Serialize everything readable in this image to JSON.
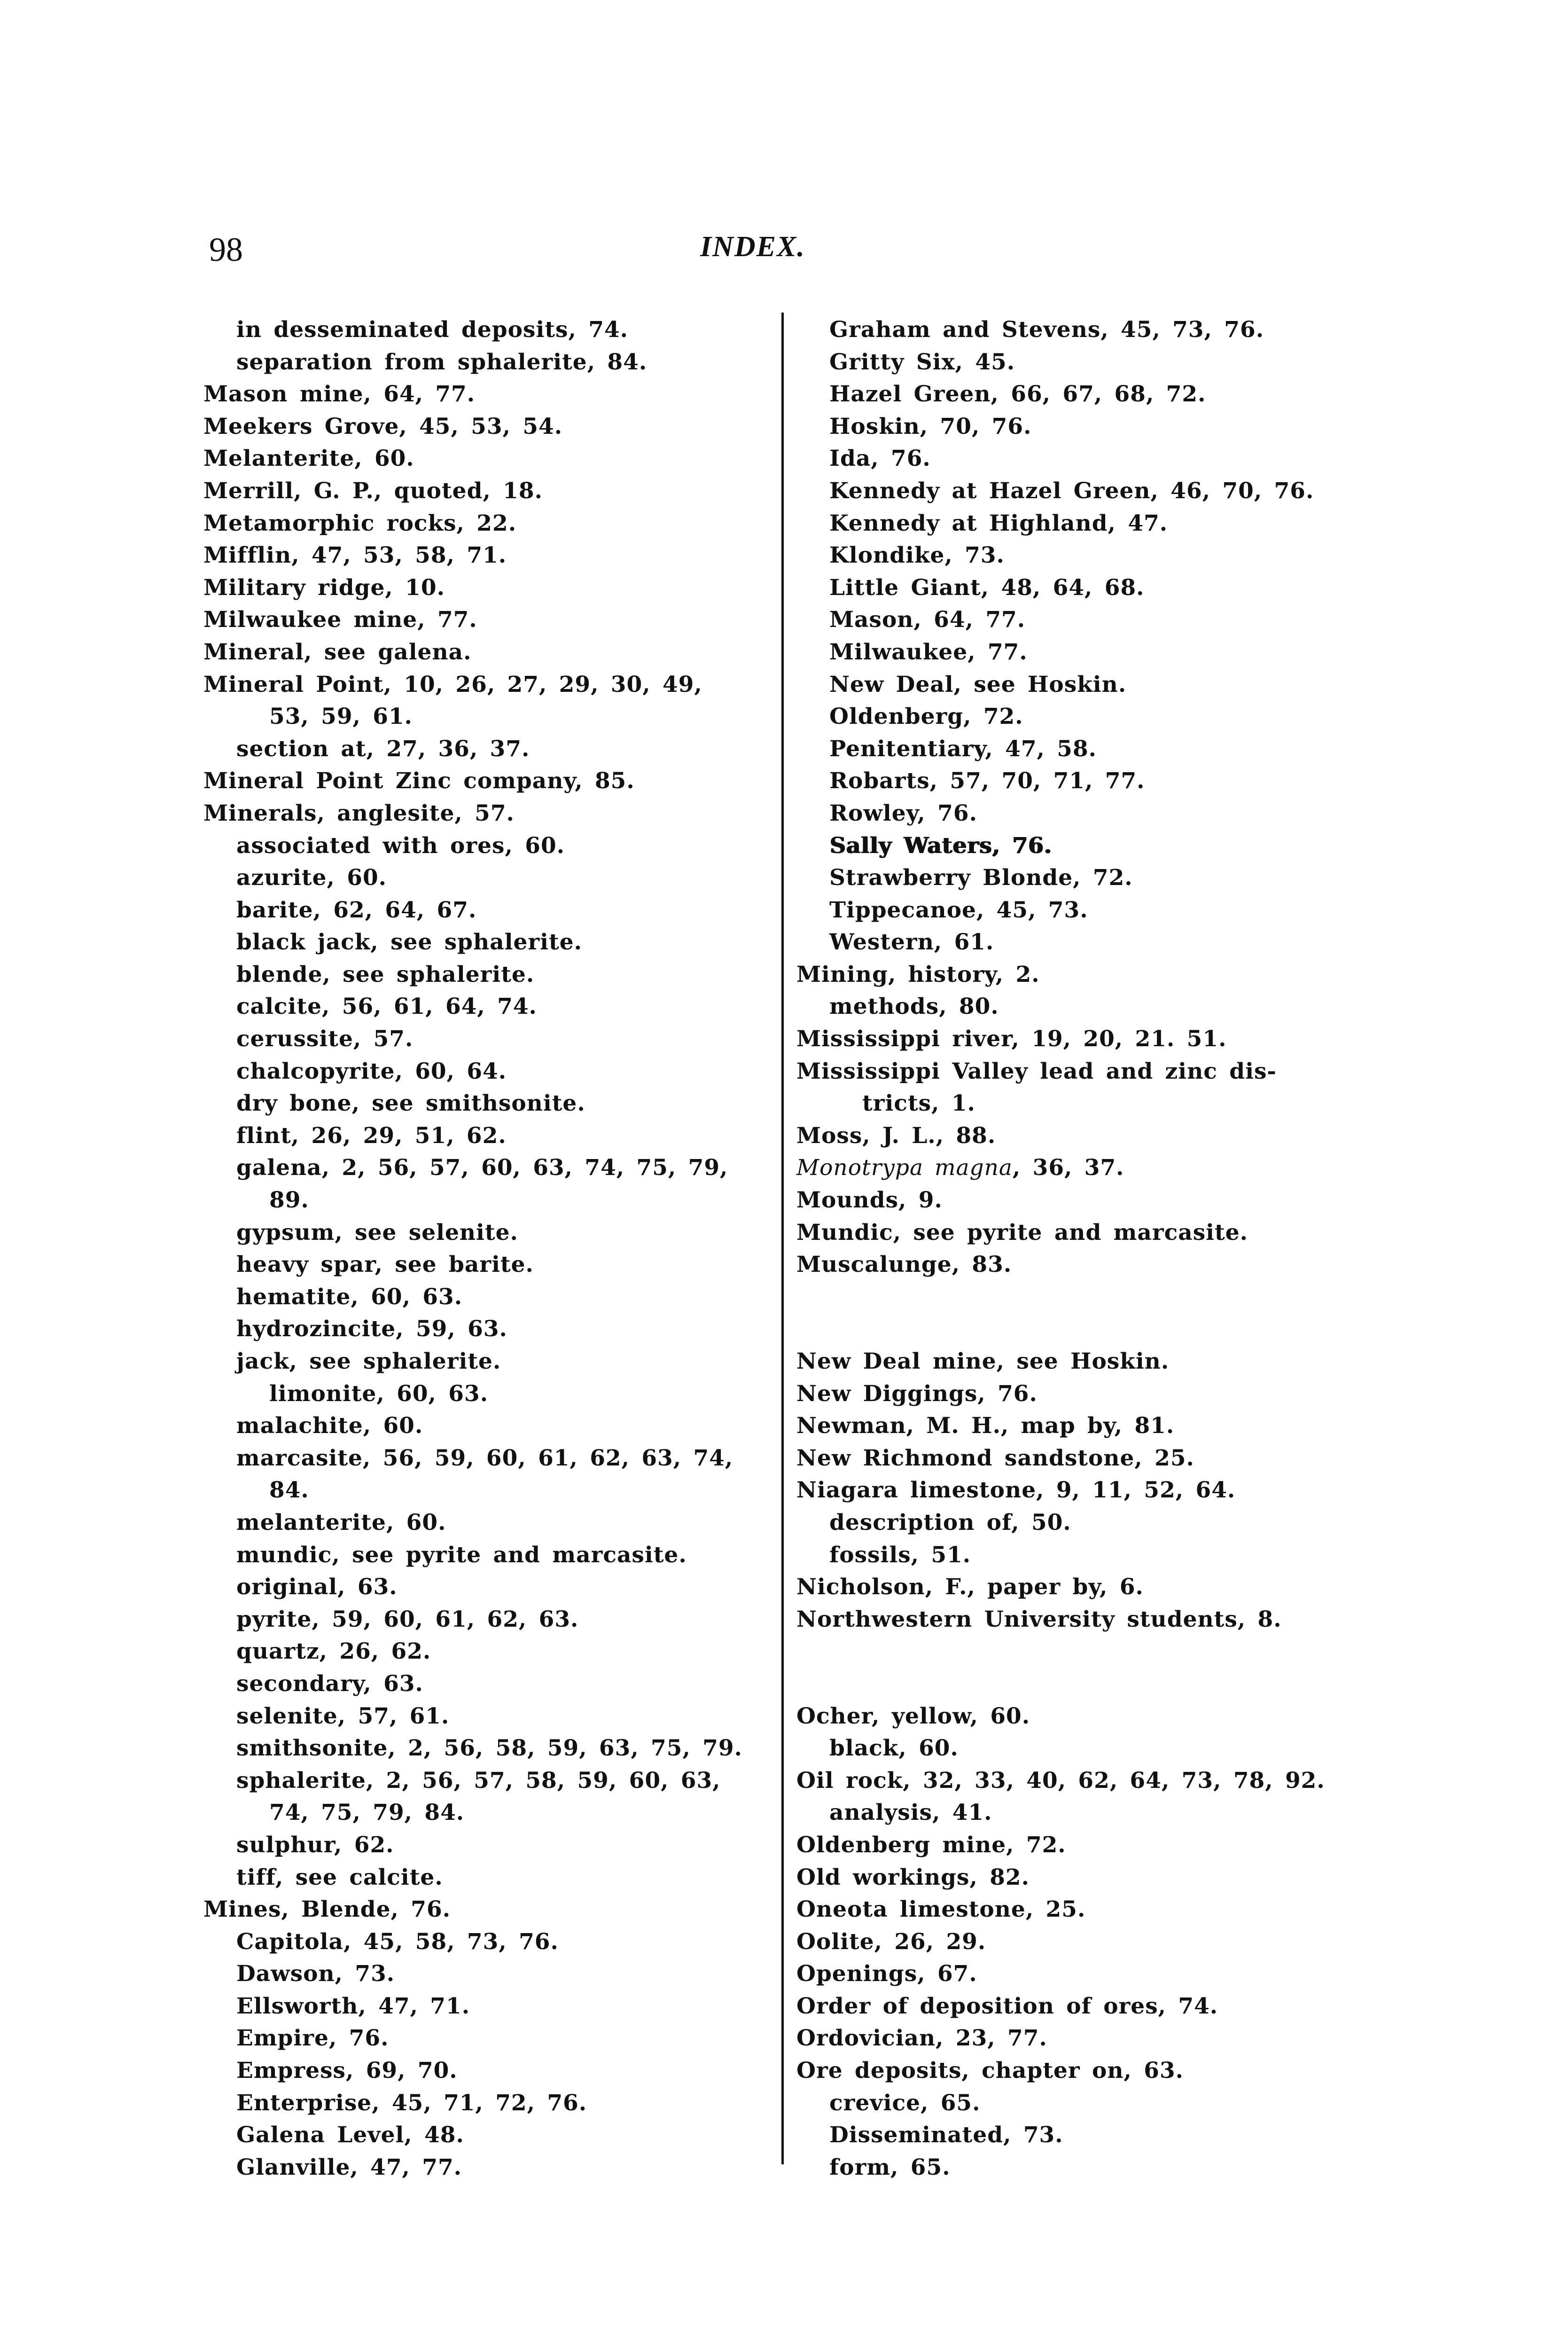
{
  "header": {
    "page_number": "98",
    "title": "INDEX."
  },
  "left_column": [
    {
      "level": 1,
      "text": "in desseminated deposits, 74."
    },
    {
      "level": 1,
      "text": "separation from sphalerite, 84."
    },
    {
      "level": 0,
      "text": "Mason mine, 64, 77."
    },
    {
      "level": 0,
      "text": "Meekers Grove, 45, 53, 54."
    },
    {
      "level": 0,
      "text": "Melanterite, 60."
    },
    {
      "level": 0,
      "text": "Merrill, G. P., quoted, 18."
    },
    {
      "level": 0,
      "text": "Metamorphic rocks, 22."
    },
    {
      "level": 0,
      "text": "Mifflin, 47, 53, 58, 71."
    },
    {
      "level": 0,
      "text": "Military ridge, 10."
    },
    {
      "level": 0,
      "text": "Milwaukee mine, 77."
    },
    {
      "level": 0,
      "text": "Mineral, see galena."
    },
    {
      "level": 0,
      "text": "Mineral Point, 10, 26, 27, 29, 30, 49,"
    },
    {
      "level": 2,
      "text": "53, 59, 61."
    },
    {
      "level": 1,
      "text": "section at, 27, 36, 37."
    },
    {
      "level": 0,
      "text": "Mineral Point Zinc company, 85."
    },
    {
      "level": 0,
      "text": "Minerals, anglesite, 57."
    },
    {
      "level": 1,
      "text": "associated with ores, 60."
    },
    {
      "level": 1,
      "text": "azurite, 60."
    },
    {
      "level": 1,
      "text": "barite, 62, 64, 67."
    },
    {
      "level": 1,
      "text": "black jack, see sphalerite."
    },
    {
      "level": 1,
      "text": "blende, see sphalerite."
    },
    {
      "level": 1,
      "text": "calcite, 56, 61, 64, 74."
    },
    {
      "level": 1,
      "text": "cerussite, 57."
    },
    {
      "level": 1,
      "text": "chalcopyrite, 60, 64."
    },
    {
      "level": 1,
      "text": "dry bone, see smithsonite."
    },
    {
      "level": 1,
      "text": "flint, 26, 29, 51, 62."
    },
    {
      "level": 1,
      "text": "galena, 2, 56, 57, 60, 63, 74, 75, 79,"
    },
    {
      "level": 2,
      "text": "89."
    },
    {
      "level": 1,
      "text": "gypsum, see selenite."
    },
    {
      "level": 1,
      "text": "heavy spar, see barite."
    },
    {
      "level": 1,
      "text": "hematite, 60, 63."
    },
    {
      "level": 1,
      "text": "hydrozincite, 59, 63."
    },
    {
      "level": 1,
      "text": "jack, see sphalerite."
    },
    {
      "level": 2,
      "text": "limonite, 60, 63."
    },
    {
      "level": 1,
      "text": "malachite, 60."
    },
    {
      "level": 1,
      "text": "marcasite, 56, 59, 60, 61, 62, 63, 74,"
    },
    {
      "level": 2,
      "text": "84."
    },
    {
      "level": 1,
      "text": "melanterite, 60."
    },
    {
      "level": 1,
      "text": "mundic, see pyrite and marcasite."
    },
    {
      "level": 1,
      "text": "original, 63."
    },
    {
      "level": 1,
      "text": "pyrite, 59, 60, 61, 62, 63."
    },
    {
      "level": 1,
      "text": "quartz, 26, 62."
    },
    {
      "level": 1,
      "text": "secondary, 63."
    },
    {
      "level": 1,
      "text": "selenite, 57, 61."
    },
    {
      "level": 1,
      "text": "smithsonite, 2, 56, 58, 59, 63, 75, 79."
    },
    {
      "level": 1,
      "text": "sphalerite, 2, 56, 57, 58, 59, 60, 63,"
    },
    {
      "level": 2,
      "text": "74, 75, 79, 84."
    },
    {
      "level": 1,
      "text": "sulphur, 62."
    },
    {
      "level": 1,
      "text": "tiff, see calcite."
    },
    {
      "level": 0,
      "text": "Mines, Blende, 76."
    },
    {
      "level": 1,
      "text": "Capitola, 45, 58, 73, 76."
    },
    {
      "level": 1,
      "text": "Dawson, 73."
    },
    {
      "level": 1,
      "text": "Ellsworth, 47, 71."
    },
    {
      "level": 1,
      "text": "Empire, 76."
    },
    {
      "level": 1,
      "text": "Empress, 69, 70."
    },
    {
      "level": 1,
      "text": "Enterprise, 45, 71, 72, 76."
    },
    {
      "level": 1,
      "text": "Galena Level, 48."
    },
    {
      "level": 1,
      "text": "Glanville, 47, 77."
    }
  ],
  "right_column": [
    {
      "level": 1,
      "text": "Graham and Stevens, 45, 73, 76."
    },
    {
      "level": 1,
      "text": "Gritty Six, 45."
    },
    {
      "level": 1,
      "text": "Hazel Green, 66, 67, 68, 72."
    },
    {
      "level": 1,
      "text": "Hoskin, 70, 76."
    },
    {
      "level": 1,
      "text": "Ida, 76."
    },
    {
      "level": 1,
      "text": "Kennedy at Hazel Green, 46, 70, 76."
    },
    {
      "level": 1,
      "text": "Kennedy at Highland, 47."
    },
    {
      "level": 1,
      "text": "Klondike, 73."
    },
    {
      "level": 1,
      "text": "Little Giant, 48, 64, 68."
    },
    {
      "level": 1,
      "text": "Mason, 64, 77."
    },
    {
      "level": 1,
      "text": "Milwaukee, 77."
    },
    {
      "level": 1,
      "text": "New Deal, see Hoskin."
    },
    {
      "level": 1,
      "text": "Oldenberg, 72."
    },
    {
      "level": 1,
      "text": "Penitentiary, 47, 58."
    },
    {
      "level": 1,
      "text": "Robarts, 57, 70, 71, 77."
    },
    {
      "level": 1,
      "text": "Rowley, 76."
    },
    {
      "level": 1,
      "text": "Sally Waters, 76.",
      "bold": true
    },
    {
      "level": 1,
      "text": "Strawberry Blonde, 72."
    },
    {
      "level": 1,
      "text": "Tippecanoe, 45, 73."
    },
    {
      "level": 1,
      "text": "Western, 61."
    },
    {
      "level": 0,
      "text": "Mining, history, 2."
    },
    {
      "level": 1,
      "text": "methods, 80."
    },
    {
      "level": 0,
      "text": "Mississippi river, 19, 20, 21. 51."
    },
    {
      "level": 0,
      "text": "Mississippi Valley lead and zinc dis-"
    },
    {
      "level": 2,
      "text": "tricts, 1."
    },
    {
      "level": 0,
      "text": "Moss, J. L., 88."
    },
    {
      "level": 0,
      "italic": "Monotrypa magna",
      "text": ", 36, 37."
    },
    {
      "level": 0,
      "text": "Mounds, 9."
    },
    {
      "level": 0,
      "text": "Mundic, see pyrite and marcasite."
    },
    {
      "level": 0,
      "text": "Muscalunge, 83."
    },
    {
      "level": 0,
      "text": ""
    },
    {
      "level": 0,
      "text": ""
    },
    {
      "level": 0,
      "text": "New Deal mine, see Hoskin."
    },
    {
      "level": 0,
      "text": "New Diggings, 76."
    },
    {
      "level": 0,
      "text": "Newman, M. H., map by, 81."
    },
    {
      "level": 0,
      "text": "New Richmond sandstone, 25."
    },
    {
      "level": 0,
      "text": "Niagara limestone, 9, 11, 52, 64."
    },
    {
      "level": 1,
      "text": "description of, 50."
    },
    {
      "level": 1,
      "text": "fossils, 51."
    },
    {
      "level": 0,
      "text": "Nicholson, F., paper by, 6."
    },
    {
      "level": 0,
      "text": "Northwestern University students, 8."
    },
    {
      "level": 0,
      "text": ""
    },
    {
      "level": 0,
      "text": ""
    },
    {
      "level": 0,
      "text": "Ocher, yellow, 60."
    },
    {
      "level": 1,
      "text": "black, 60."
    },
    {
      "level": 0,
      "text": "Oil rock, 32, 33, 40, 62, 64, 73, 78, 92."
    },
    {
      "level": 1,
      "text": "analysis, 41."
    },
    {
      "level": 0,
      "text": "Oldenberg mine, 72."
    },
    {
      "level": 0,
      "text": "Old workings, 82."
    },
    {
      "level": 0,
      "text": "Oneota limestone, 25."
    },
    {
      "level": 0,
      "text": "Oolite, 26, 29."
    },
    {
      "level": 0,
      "text": "Openings, 67."
    },
    {
      "level": 0,
      "text": "Order of deposition of ores, 74."
    },
    {
      "level": 0,
      "text": "Ordovician, 23, 77."
    },
    {
      "level": 0,
      "text": "Ore deposits, chapter on, 63."
    },
    {
      "level": 1,
      "text": "crevice, 65."
    },
    {
      "level": 1,
      "text": "Disseminated, 73."
    },
    {
      "level": 1,
      "text": "form, 65."
    }
  ]
}
